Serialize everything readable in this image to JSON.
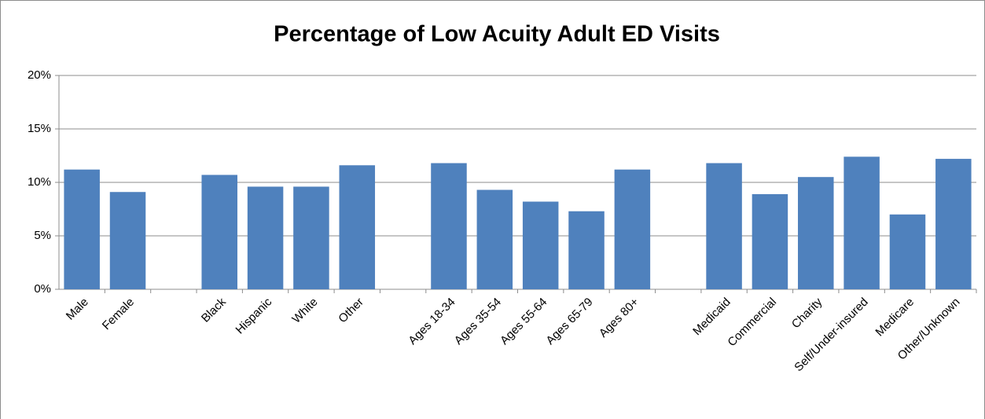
{
  "chart_data": {
    "type": "bar",
    "title": "Percentage of Low Acuity Adult ED Visits",
    "categories": [
      "Male",
      "Female",
      null,
      "Black",
      "Hispanic",
      "White",
      "Other",
      null,
      "Ages 18-34",
      "Ages 35-54",
      "Ages 55-64",
      "Ages 65-79",
      "Ages 80+",
      null,
      "Medicaid",
      "Commercial",
      "Charity",
      "Self/Under-insured",
      "Medicare",
      "Other/Unknown"
    ],
    "values": [
      11.2,
      9.1,
      null,
      10.7,
      9.6,
      9.6,
      11.6,
      null,
      11.8,
      9.3,
      8.2,
      7.3,
      11.2,
      null,
      11.8,
      8.9,
      10.5,
      12.4,
      7.0,
      12.2
    ],
    "color": "#4f81bd",
    "ylim": [
      0,
      20
    ],
    "yticks": [
      {
        "value": 0,
        "label": "0%"
      },
      {
        "value": 5,
        "label": "5%"
      },
      {
        "value": 10,
        "label": "10%"
      },
      {
        "value": 15,
        "label": "15%"
      },
      {
        "value": 20,
        "label": "20%"
      }
    ],
    "grid": true
  }
}
